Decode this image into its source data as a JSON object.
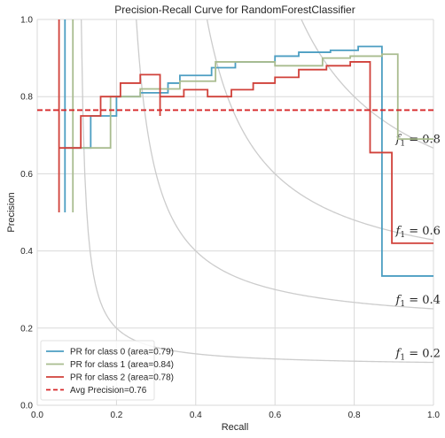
{
  "chart_data": {
    "type": "line",
    "title": "Precision-Recall Curve for RandomForestClassifier",
    "xlabel": "Recall",
    "ylabel": "Precision",
    "xlim": [
      0,
      1
    ],
    "ylim": [
      0,
      1
    ],
    "xticks": [
      "0.0",
      "0.2",
      "0.4",
      "0.6",
      "0.8",
      "1.0"
    ],
    "yticks": [
      "0.0",
      "0.2",
      "0.4",
      "0.6",
      "0.8",
      "1.0"
    ],
    "grid": true,
    "legend_position": "lower-left",
    "iso_f1_curves": [
      {
        "f1": 0.2,
        "label_prefix": "f",
        "label_sub": "1",
        "label_suffix": " = 0.2"
      },
      {
        "f1": 0.4,
        "label_prefix": "f",
        "label_sub": "1",
        "label_suffix": " = 0.4"
      },
      {
        "f1": 0.6,
        "label_prefix": "f",
        "label_sub": "1",
        "label_suffix": " = 0.6"
      },
      {
        "f1": 0.8,
        "label_prefix": "f",
        "label_sub": "1",
        "label_suffix": " = 0.8"
      }
    ],
    "avg_precision": {
      "value": 0.765,
      "label": "Avg Precision=0.76",
      "color": "#d62728"
    },
    "series": [
      {
        "name": "PR for class 0 (area=0.79)",
        "color": "#4c9ec2",
        "points": [
          [
            0.07,
            0.5
          ],
          [
            0.07,
            1.0
          ],
          [
            0.07,
            0.667
          ],
          [
            0.135,
            0.667
          ],
          [
            0.135,
            0.75
          ],
          [
            0.2,
            0.75
          ],
          [
            0.2,
            0.8
          ],
          [
            0.26,
            0.8
          ],
          [
            0.26,
            0.81
          ],
          [
            0.33,
            0.81
          ],
          [
            0.33,
            0.835
          ],
          [
            0.36,
            0.835
          ],
          [
            0.36,
            0.855
          ],
          [
            0.44,
            0.855
          ],
          [
            0.44,
            0.875
          ],
          [
            0.5,
            0.875
          ],
          [
            0.5,
            0.89
          ],
          [
            0.6,
            0.89
          ],
          [
            0.6,
            0.905
          ],
          [
            0.66,
            0.905
          ],
          [
            0.66,
            0.915
          ],
          [
            0.74,
            0.915
          ],
          [
            0.74,
            0.92
          ],
          [
            0.81,
            0.92
          ],
          [
            0.81,
            0.93
          ],
          [
            0.87,
            0.93
          ],
          [
            0.87,
            0.335
          ],
          [
            1.0,
            0.335
          ]
        ]
      },
      {
        "name": "PR for class 1 (area=0.84)",
        "color": "#a9bc8f",
        "points": [
          [
            0.09,
            0.5
          ],
          [
            0.09,
            1.0
          ],
          [
            0.09,
            0.667
          ],
          [
            0.185,
            0.667
          ],
          [
            0.185,
            0.8
          ],
          [
            0.26,
            0.8
          ],
          [
            0.26,
            0.82
          ],
          [
            0.36,
            0.82
          ],
          [
            0.36,
            0.84
          ],
          [
            0.45,
            0.84
          ],
          [
            0.45,
            0.89
          ],
          [
            0.6,
            0.89
          ],
          [
            0.6,
            0.88
          ],
          [
            0.72,
            0.88
          ],
          [
            0.72,
            0.9
          ],
          [
            0.79,
            0.9
          ],
          [
            0.79,
            0.905
          ],
          [
            0.87,
            0.905
          ],
          [
            0.87,
            0.91
          ],
          [
            0.91,
            0.91
          ],
          [
            0.91,
            0.69
          ],
          [
            1.0,
            0.69
          ]
        ]
      },
      {
        "name": "PR for class 2 (area=0.78)",
        "color": "#d0413a",
        "points": [
          [
            0.055,
            0.5
          ],
          [
            0.055,
            1.0
          ],
          [
            0.055,
            0.667
          ],
          [
            0.11,
            0.667
          ],
          [
            0.11,
            0.75
          ],
          [
            0.16,
            0.75
          ],
          [
            0.16,
            0.8
          ],
          [
            0.21,
            0.8
          ],
          [
            0.21,
            0.835
          ],
          [
            0.26,
            0.835
          ],
          [
            0.26,
            0.857
          ],
          [
            0.31,
            0.857
          ],
          [
            0.31,
            0.75
          ],
          [
            0.31,
            0.8
          ],
          [
            0.37,
            0.8
          ],
          [
            0.37,
            0.818
          ],
          [
            0.43,
            0.818
          ],
          [
            0.43,
            0.8
          ],
          [
            0.49,
            0.8
          ],
          [
            0.49,
            0.818
          ],
          [
            0.545,
            0.818
          ],
          [
            0.545,
            0.835
          ],
          [
            0.6,
            0.835
          ],
          [
            0.6,
            0.85
          ],
          [
            0.66,
            0.85
          ],
          [
            0.66,
            0.87
          ],
          [
            0.73,
            0.87
          ],
          [
            0.73,
            0.88
          ],
          [
            0.79,
            0.88
          ],
          [
            0.79,
            0.89
          ],
          [
            0.84,
            0.89
          ],
          [
            0.84,
            0.655
          ],
          [
            0.895,
            0.655
          ],
          [
            0.895,
            0.42
          ],
          [
            1.0,
            0.42
          ]
        ]
      }
    ]
  }
}
